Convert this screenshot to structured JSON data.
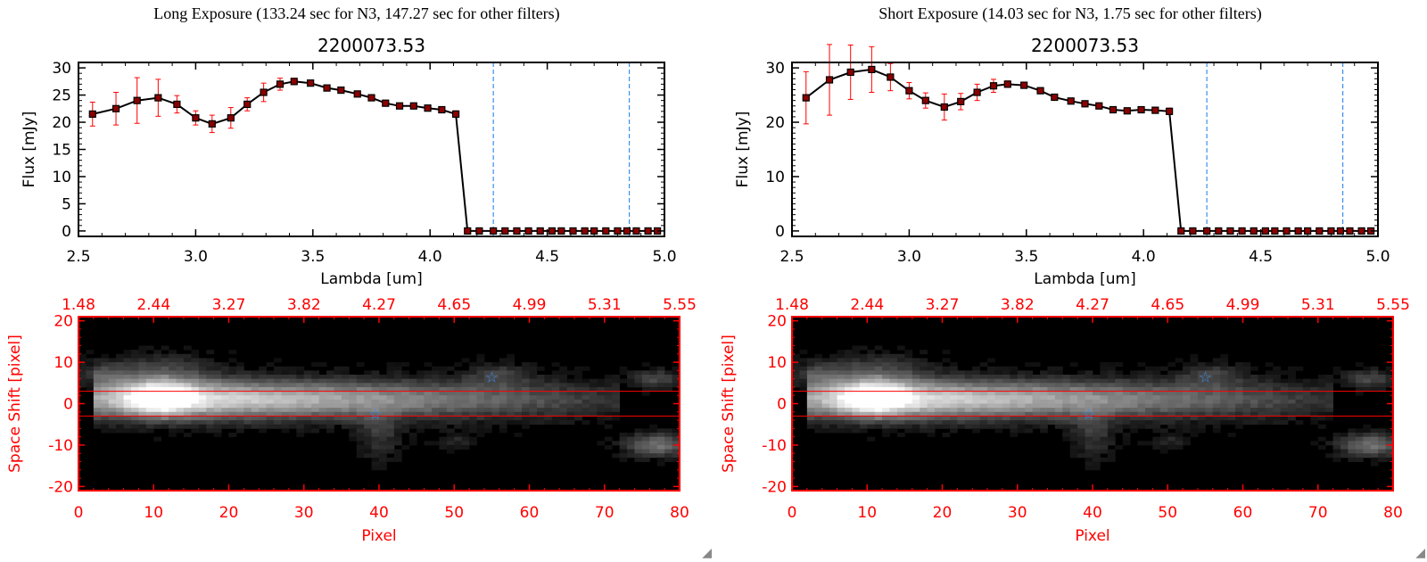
{
  "panels": [
    {
      "title": "Long Exposure (133.24 sec for N3, 147.27 sec for other filters)",
      "chart_data": {
        "type": "line",
        "title": "2200073.53",
        "xlabel": "Lambda [um]",
        "ylabel": "Flux [mJy]",
        "xlim": [
          2.5,
          5.0
        ],
        "ylim": [
          -1,
          31
        ],
        "xticks": [
          2.5,
          3.0,
          3.5,
          4.0,
          4.5,
          5.0
        ],
        "xtick_labels": [
          "2.5",
          "3.0",
          "3.5",
          "4.0",
          "4.5",
          "5.0"
        ],
        "yticks": [
          0,
          5,
          10,
          15,
          20,
          25,
          30
        ],
        "ytick_labels": [
          "0",
          "5",
          "10",
          "15",
          "20",
          "25",
          "30"
        ],
        "series": [
          {
            "x": [
              2.56,
              2.66,
              2.75,
              2.84,
              2.92,
              3.0,
              3.07,
              3.15,
              3.22,
              3.29,
              3.36,
              3.42,
              3.49,
              3.56,
              3.62,
              3.69,
              3.75,
              3.81,
              3.87,
              3.93,
              3.99,
              4.05,
              4.11,
              4.16,
              4.21,
              4.27,
              4.32,
              4.37,
              4.42,
              4.47,
              4.52,
              4.56,
              4.61,
              4.66,
              4.7,
              4.75,
              4.8,
              4.84,
              4.88,
              4.93,
              4.97
            ],
            "y": [
              21.5,
              22.5,
              24.0,
              24.5,
              23.3,
              20.8,
              19.7,
              20.8,
              23.3,
              25.5,
              27.0,
              27.5,
              27.2,
              26.3,
              25.9,
              25.2,
              24.5,
              23.5,
              23.0,
              23.0,
              22.6,
              22.3,
              21.5,
              0,
              0,
              0,
              0,
              0,
              0,
              0,
              0,
              0,
              0,
              0,
              0,
              0,
              0,
              0,
              0,
              0,
              0
            ],
            "yerr": [
              2.2,
              3.0,
              4.2,
              3.4,
              1.6,
              1.3,
              1.6,
              1.9,
              1.2,
              1.7,
              1.1,
              0.6,
              0.5,
              0.5,
              0.5,
              0.5,
              0.4,
              0.4,
              0.4,
              0.4,
              0.4,
              0.4,
              0.6,
              0.3,
              0.3,
              0.3,
              0.3,
              0.3,
              0.3,
              0.3,
              0.3,
              0.3,
              0.3,
              0.3,
              0.3,
              0.3,
              0.3,
              0.3,
              0.3,
              0.3,
              0.3
            ]
          }
        ],
        "vlines": [
          4.27,
          4.85
        ],
        "line_color": "#000000",
        "marker_color": "#8b0000",
        "error_color": "#ff0000",
        "vline_color": "#3a8ef0"
      },
      "image_data": {
        "type": "heatmap",
        "xlabel": "Pixel",
        "ylabel": "Space Shift [pixel]",
        "xticks": [
          "0",
          "10",
          "20",
          "30",
          "40",
          "50",
          "60",
          "70",
          "80"
        ],
        "yticks": [
          "20",
          "10",
          "0",
          "-10",
          "-20"
        ],
        "top_tick_labels": [
          "1.48",
          "2.44",
          "3.27",
          "3.82",
          "4.27",
          "4.65",
          "4.99",
          "5.31",
          "5.55"
        ],
        "hlines": [
          3,
          -3
        ],
        "stars": [
          {
            "x": 55,
            "y": 6.5
          },
          {
            "x": 39.5,
            "y": -2.5
          }
        ],
        "axis_color": "#ff0000",
        "star_color": "#3a8ef0"
      }
    },
    {
      "title": "Short Exposure (14.03 sec for N3, 1.75 sec for other filters)",
      "chart_data": {
        "type": "line",
        "title": "2200073.53",
        "xlabel": "Lambda [um]",
        "ylabel": "Flux [mJy]",
        "xlim": [
          2.5,
          5.0
        ],
        "ylim": [
          -1,
          31
        ],
        "xticks": [
          2.5,
          3.0,
          3.5,
          4.0,
          4.5,
          5.0
        ],
        "xtick_labels": [
          "2.5",
          "3.0",
          "3.5",
          "4.0",
          "4.5",
          "5.0"
        ],
        "yticks": [
          0,
          10,
          20,
          30
        ],
        "ytick_labels": [
          "0",
          "10",
          "20",
          "30"
        ],
        "series": [
          {
            "x": [
              2.56,
              2.66,
              2.75,
              2.84,
              2.92,
              3.0,
              3.07,
              3.15,
              3.22,
              3.29,
              3.36,
              3.42,
              3.49,
              3.56,
              3.62,
              3.69,
              3.75,
              3.81,
              3.87,
              3.93,
              3.99,
              4.05,
              4.11,
              4.16,
              4.21,
              4.27,
              4.32,
              4.37,
              4.42,
              4.47,
              4.52,
              4.56,
              4.61,
              4.66,
              4.7,
              4.75,
              4.8,
              4.84,
              4.88,
              4.93,
              4.97
            ],
            "y": [
              24.5,
              27.8,
              29.2,
              29.7,
              28.3,
              25.8,
              24.0,
              22.8,
              23.8,
              25.5,
              26.7,
              27.0,
              26.8,
              25.8,
              24.6,
              23.9,
              23.4,
              23.0,
              22.3,
              22.1,
              22.3,
              22.2,
              22.0,
              0,
              0,
              0,
              0,
              0,
              0,
              0,
              0,
              0,
              0,
              0,
              0,
              0,
              0,
              0,
              0,
              0,
              0
            ],
            "yerr": [
              4.8,
              6.5,
              5.0,
              4.2,
              2.5,
              1.5,
              1.4,
              2.4,
              1.5,
              1.5,
              1.2,
              0.6,
              0.5,
              0.5,
              0.5,
              0.5,
              0.4,
              0.4,
              0.4,
              0.4,
              0.4,
              0.4,
              0.6,
              0.3,
              0.3,
              0.3,
              0.3,
              0.3,
              0.3,
              0.3,
              0.3,
              0.3,
              0.3,
              0.3,
              0.3,
              0.3,
              0.3,
              0.3,
              0.3,
              0.3,
              0.3
            ]
          }
        ],
        "vlines": [
          4.27,
          4.85
        ],
        "line_color": "#000000",
        "marker_color": "#8b0000",
        "error_color": "#ff0000",
        "vline_color": "#3a8ef0"
      },
      "image_data": {
        "type": "heatmap",
        "xlabel": "Pixel",
        "ylabel": "Space Shift [pixel]",
        "xticks": [
          "0",
          "10",
          "20",
          "30",
          "40",
          "50",
          "60",
          "70",
          "80"
        ],
        "yticks": [
          "20",
          "10",
          "0",
          "-10",
          "-20"
        ],
        "top_tick_labels": [
          "1.48",
          "2.44",
          "3.27",
          "3.82",
          "4.27",
          "4.65",
          "4.99",
          "5.31",
          "5.55"
        ],
        "hlines": [
          3,
          -3
        ],
        "stars": [
          {
            "x": 55,
            "y": 6.5
          },
          {
            "x": 39.5,
            "y": -2.5
          }
        ],
        "axis_color": "#ff0000",
        "star_color": "#3a8ef0"
      }
    }
  ]
}
